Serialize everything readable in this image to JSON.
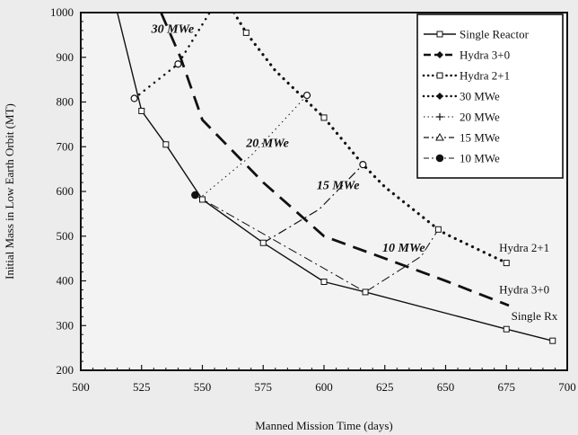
{
  "chart_data": {
    "type": "line",
    "xlabel": "Manned Mission Time (days)",
    "ylabel": "Initial Mass in Low Earth Orbit (MT)",
    "xlim": [
      500,
      700
    ],
    "ylim": [
      200,
      1000
    ],
    "xticks": [
      "500",
      "525",
      "550",
      "575",
      "600",
      "625",
      "650",
      "675",
      "700"
    ],
    "yticks": [
      "200",
      "300",
      "400",
      "500",
      "600",
      "700",
      "800",
      "900",
      "1000"
    ],
    "legend_position": "top-right",
    "series": [
      {
        "name": "Single Reactor",
        "style": "solid",
        "width": 1.4,
        "marker": "square-open",
        "points": [
          [
            515,
            1000
          ],
          [
            525,
            780
          ],
          [
            535,
            705
          ],
          [
            550,
            582
          ],
          [
            575,
            485
          ],
          [
            600,
            398
          ],
          [
            617,
            375
          ],
          [
            675,
            292
          ],
          [
            694,
            266
          ]
        ],
        "marker_points": [
          [
            525,
            780
          ],
          [
            535,
            705
          ],
          [
            550,
            582
          ],
          [
            575,
            485
          ],
          [
            600,
            398
          ],
          [
            617,
            375
          ],
          [
            675,
            292
          ],
          [
            694,
            266
          ]
        ]
      },
      {
        "name": "Hydra 3+0",
        "style": "dashed",
        "width": 2.8,
        "marker": "none",
        "points": [
          [
            533,
            1000
          ],
          [
            541,
            900
          ],
          [
            550,
            760
          ],
          [
            575,
            620
          ],
          [
            600,
            500
          ],
          [
            625,
            450
          ],
          [
            650,
            400
          ],
          [
            676,
            345
          ]
        ],
        "marker_points": []
      },
      {
        "name": "Hydra 2+1",
        "style": "dotted",
        "width": 3.2,
        "marker": "square-open",
        "points": [
          [
            563,
            1000
          ],
          [
            568,
            955
          ],
          [
            580,
            870
          ],
          [
            600,
            765
          ],
          [
            616,
            660
          ],
          [
            625,
            610
          ],
          [
            647,
            515
          ],
          [
            650,
            505
          ],
          [
            675,
            440
          ]
        ],
        "marker_points": [
          [
            568,
            955
          ],
          [
            600,
            765
          ],
          [
            647,
            515
          ],
          [
            675,
            440
          ]
        ]
      },
      {
        "name": "30 MWe",
        "style": "dotted",
        "width": 2.5,
        "marker": "circle-open",
        "points": [
          [
            522,
            808
          ],
          [
            540,
            885
          ],
          [
            553,
            1000
          ]
        ],
        "marker_points": [
          [
            522,
            808
          ],
          [
            540,
            885
          ]
        ]
      },
      {
        "name": "20 MWe",
        "style": "dotted-thin",
        "width": 1.0,
        "marker": "circle-open",
        "points": [
          [
            550,
            590
          ],
          [
            570,
            680
          ],
          [
            593,
            815
          ]
        ],
        "marker_points": [
          [
            593,
            815
          ]
        ]
      },
      {
        "name": "15 MWe",
        "style": "dash-dot",
        "width": 1.2,
        "marker": "circle-open",
        "points": [
          [
            575,
            485
          ],
          [
            598,
            560
          ],
          [
            616,
            660
          ]
        ],
        "marker_points": [
          [
            616,
            660
          ]
        ]
      },
      {
        "name": "10 MWe",
        "style": "dash-dot",
        "width": 1.0,
        "marker": "circle-filled",
        "points": [
          [
            547,
            592
          ],
          [
            617,
            375
          ],
          [
            640,
            455
          ],
          [
            647,
            515
          ]
        ],
        "marker_points": [
          [
            547,
            592
          ]
        ]
      }
    ],
    "annotations": [
      {
        "text": "30 MWe",
        "x": 529,
        "y": 955,
        "style": "italic"
      },
      {
        "text": "20 MWe",
        "x": 568,
        "y": 700,
        "style": "italic"
      },
      {
        "text": "15 MWe",
        "x": 597,
        "y": 605,
        "style": "italic"
      },
      {
        "text": "10 MWe",
        "x": 624,
        "y": 465,
        "style": "italic"
      },
      {
        "text": "Hydra 2+1",
        "x": 672,
        "y": 465,
        "style": "normal"
      },
      {
        "text": "Hydra 3+0",
        "x": 672,
        "y": 372,
        "style": "normal"
      },
      {
        "text": "Single Rx",
        "x": 677,
        "y": 313,
        "style": "normal"
      }
    ]
  }
}
